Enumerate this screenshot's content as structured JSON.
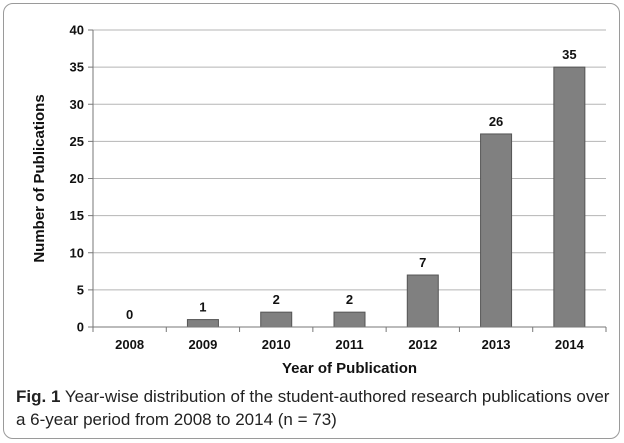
{
  "chart_data": {
    "type": "bar",
    "categories": [
      "2008",
      "2009",
      "2010",
      "2011",
      "2012",
      "2013",
      "2014"
    ],
    "values": [
      0,
      1,
      2,
      2,
      7,
      26,
      35
    ],
    "data_labels": [
      "0",
      "1",
      "2",
      "2",
      "7",
      "26",
      "35"
    ],
    "xlabel": "Year of Publication",
    "ylabel": "Number of Publications",
    "ylim": [
      0,
      40
    ],
    "yticks": [
      0,
      5,
      10,
      15,
      20,
      25,
      30,
      35,
      40
    ],
    "grid": true,
    "bar_color": "#808080",
    "bar_border": "#555555"
  },
  "caption": {
    "label": "Fig. 1",
    "text": "Year-wise distribution of the student-authored research publications over a 6-year period from 2008 to 2014 (n = 73)"
  }
}
